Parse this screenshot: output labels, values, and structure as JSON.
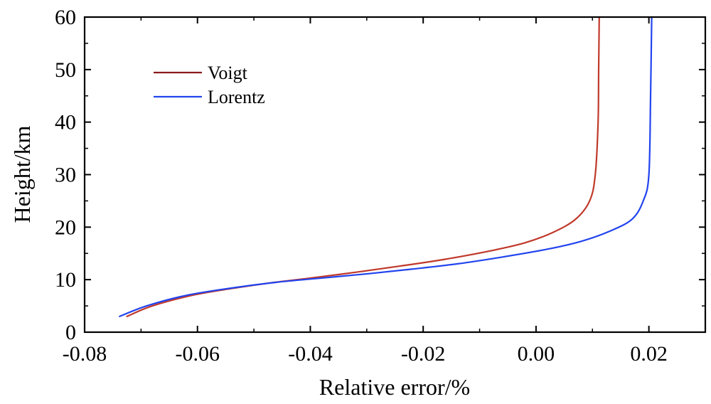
{
  "chart_data": {
    "type": "line",
    "title": "",
    "xlabel": "Relative error/%",
    "ylabel": "Height/km",
    "xlim": [
      -0.08,
      0.03
    ],
    "ylim": [
      0,
      60
    ],
    "x_ticks": [
      -0.08,
      -0.06,
      -0.04,
      -0.02,
      0.0,
      0.02
    ],
    "x_tick_labels": [
      "-0.08",
      "-0.06",
      "-0.04",
      "-0.02",
      "0.00",
      "0.02"
    ],
    "y_ticks": [
      0,
      10,
      20,
      30,
      40,
      50,
      60
    ],
    "y_tick_labels": [
      "0",
      "10",
      "20",
      "30",
      "40",
      "50",
      "60"
    ],
    "grid": false,
    "legend_position": "top-left",
    "series": [
      {
        "name": "Voigt",
        "color": "#c0392b",
        "x": [
          -0.0725,
          -0.068,
          -0.061,
          -0.054,
          -0.047,
          -0.04,
          -0.032,
          -0.024,
          -0.016,
          -0.008,
          -0.002,
          0.003,
          0.007,
          0.0095,
          0.0105,
          0.011,
          0.0111,
          0.0112
        ],
        "y": [
          3,
          5,
          7,
          8.3,
          9.4,
          10.3,
          11.4,
          12.6,
          13.9,
          15.5,
          17,
          19,
          21.5,
          25,
          30,
          40,
          50,
          60
        ]
      },
      {
        "name": "Lorentz",
        "color": "#2244ee",
        "x": [
          -0.0738,
          -0.069,
          -0.062,
          -0.054,
          -0.046,
          -0.038,
          -0.03,
          -0.022,
          -0.014,
          -0.006,
          0.002,
          0.008,
          0.013,
          0.017,
          0.019,
          0.02,
          0.0203,
          0.0205
        ],
        "y": [
          3,
          5,
          7,
          8.4,
          9.5,
          10.3,
          11.1,
          12.0,
          13.0,
          14.3,
          15.8,
          17.3,
          19.2,
          21.5,
          25,
          30,
          45,
          60
        ]
      }
    ]
  }
}
